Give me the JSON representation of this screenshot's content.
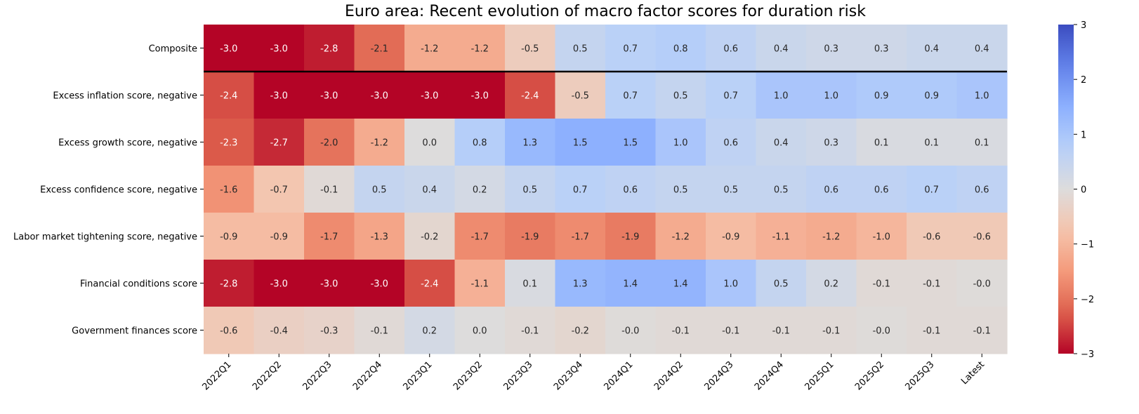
{
  "chart_data": {
    "type": "heatmap",
    "title": "Euro area: Recent evolution of macro factor scores for duration risk",
    "colormap": "coolwarm_r",
    "vmin": -3,
    "vmax": 3,
    "colorbar_ticks": [
      3,
      2,
      1,
      0,
      -1,
      -2,
      -3
    ],
    "colorbar_tick_labels": [
      "3",
      "2",
      "1",
      "0",
      "−1",
      "−2",
      "−3"
    ],
    "separator_after_row": "Composite",
    "x": [
      "2022Q1",
      "2022Q2",
      "2022Q3",
      "2022Q4",
      "2023Q1",
      "2023Q2",
      "2023Q3",
      "2023Q4",
      "2024Q1",
      "2024Q2",
      "2024Q3",
      "2024Q4",
      "2025Q1",
      "2025Q2",
      "2025Q3",
      "Latest"
    ],
    "rows": [
      {
        "name": "Composite",
        "values": [
          -3.0,
          -3.0,
          -2.8,
          -2.1,
          -1.2,
          -1.2,
          -0.5,
          0.5,
          0.7,
          0.8,
          0.6,
          0.4,
          0.3,
          0.3,
          0.4,
          0.4
        ],
        "labels": [
          "-3.0",
          "-3.0",
          "-2.8",
          "-2.1",
          "-1.2",
          "-1.2",
          "-0.5",
          "0.5",
          "0.7",
          "0.8",
          "0.6",
          "0.4",
          "0.3",
          "0.3",
          "0.4",
          "0.4"
        ]
      },
      {
        "name": "Excess inflation score, negative",
        "values": [
          -2.4,
          -3.0,
          -3.0,
          -3.0,
          -3.0,
          -3.0,
          -2.4,
          -0.5,
          0.7,
          0.5,
          0.7,
          1.0,
          1.0,
          0.9,
          0.9,
          1.0
        ],
        "labels": [
          "-2.4",
          "-3.0",
          "-3.0",
          "-3.0",
          "-3.0",
          "-3.0",
          "-2.4",
          "-0.5",
          "0.7",
          "0.5",
          "0.7",
          "1.0",
          "1.0",
          "0.9",
          "0.9",
          "1.0"
        ]
      },
      {
        "name": "Excess growth score, negative",
        "values": [
          -2.3,
          -2.7,
          -2.0,
          -1.2,
          0.0,
          0.8,
          1.3,
          1.5,
          1.5,
          1.0,
          0.6,
          0.4,
          0.3,
          0.1,
          0.1,
          0.1
        ],
        "labels": [
          "-2.3",
          "-2.7",
          "-2.0",
          "-1.2",
          "0.0",
          "0.8",
          "1.3",
          "1.5",
          "1.5",
          "1.0",
          "0.6",
          "0.4",
          "0.3",
          "0.1",
          "0.1",
          "0.1"
        ]
      },
      {
        "name": "Excess confidence score, negative",
        "values": [
          -1.6,
          -0.7,
          -0.1,
          0.5,
          0.4,
          0.2,
          0.5,
          0.7,
          0.6,
          0.5,
          0.5,
          0.5,
          0.6,
          0.6,
          0.7,
          0.6
        ],
        "labels": [
          "-1.6",
          "-0.7",
          "-0.1",
          "0.5",
          "0.4",
          "0.2",
          "0.5",
          "0.7",
          "0.6",
          "0.5",
          "0.5",
          "0.5",
          "0.6",
          "0.6",
          "0.7",
          "0.6"
        ]
      },
      {
        "name": "Labor market tightening score, negative",
        "values": [
          -0.9,
          -0.9,
          -1.7,
          -1.3,
          -0.2,
          -1.7,
          -1.9,
          -1.7,
          -1.9,
          -1.2,
          -0.9,
          -1.1,
          -1.2,
          -1.0,
          -0.6,
          -0.6
        ],
        "labels": [
          "-0.9",
          "-0.9",
          "-1.7",
          "-1.3",
          "-0.2",
          "-1.7",
          "-1.9",
          "-1.7",
          "-1.9",
          "-1.2",
          "-0.9",
          "-1.1",
          "-1.2",
          "-1.0",
          "-0.6",
          "-0.6"
        ]
      },
      {
        "name": "Financial conditions score",
        "values": [
          -2.8,
          -3.0,
          -3.0,
          -3.0,
          -2.4,
          -1.1,
          0.1,
          1.3,
          1.4,
          1.4,
          1.0,
          0.5,
          0.2,
          -0.1,
          -0.1,
          -0.04
        ],
        "labels": [
          "-2.8",
          "-3.0",
          "-3.0",
          "-3.0",
          "-2.4",
          "-1.1",
          "0.1",
          "1.3",
          "1.4",
          "1.4",
          "1.0",
          "0.5",
          "0.2",
          "-0.1",
          "-0.1",
          "-0.0"
        ]
      },
      {
        "name": "Government finances score",
        "values": [
          -0.6,
          -0.4,
          -0.3,
          -0.1,
          0.2,
          0.0,
          -0.1,
          -0.2,
          -0.04,
          -0.1,
          -0.1,
          -0.1,
          -0.1,
          -0.04,
          -0.1,
          -0.1
        ],
        "labels": [
          "-0.6",
          "-0.4",
          "-0.3",
          "-0.1",
          "0.2",
          "0.0",
          "-0.1",
          "-0.2",
          "-0.0",
          "-0.1",
          "-0.1",
          "-0.1",
          "-0.1",
          "-0.0",
          "-0.1",
          "-0.1"
        ]
      }
    ]
  }
}
